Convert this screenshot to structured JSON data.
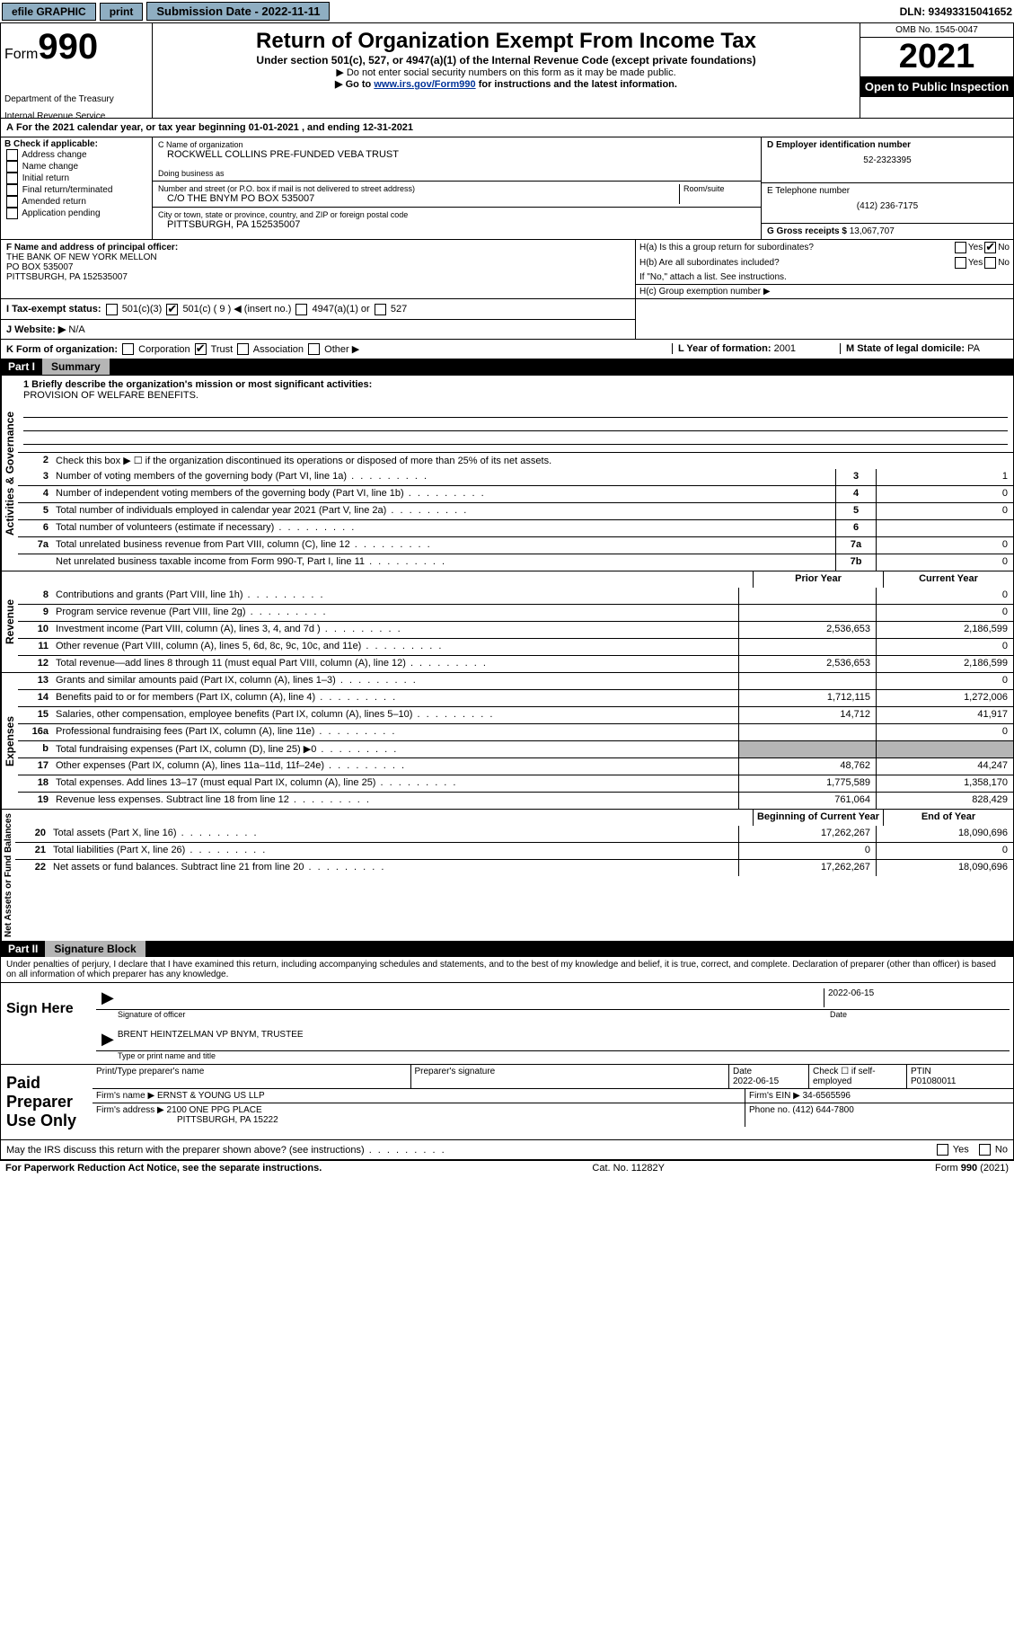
{
  "topbar": {
    "efile": "efile GRAPHIC",
    "print": "print",
    "sub_label": "Submission Date - 2022-11-11",
    "dln": "DLN: 93493315041652"
  },
  "header": {
    "form_label": "Form",
    "form_num": "990",
    "dept": "Department of the Treasury",
    "service": "Internal Revenue Service",
    "title": "Return of Organization Exempt From Income Tax",
    "subtitle": "Under section 501(c), 527, or 4947(a)(1) of the Internal Revenue Code (except private foundations)",
    "note1": "▶ Do not enter social security numbers on this form as it may be made public.",
    "note2_pre": "▶ Go to ",
    "note2_link": "www.irs.gov/Form990",
    "note2_post": " for instructions and the latest information.",
    "omb": "OMB No. 1545-0047",
    "year": "2021",
    "inspection": "Open to Public Inspection"
  },
  "line_a": "For the 2021 calendar year, or tax year beginning 01-01-2021    , and ending 12-31-2021",
  "box_b": {
    "label": "B Check if applicable:",
    "opts": [
      "Address change",
      "Name change",
      "Initial return",
      "Final return/terminated",
      "Amended return",
      "Application pending"
    ]
  },
  "box_c": {
    "name_label": "C Name of organization",
    "name": "ROCKWELL COLLINS PRE-FUNDED VEBA TRUST",
    "dba_label": "Doing business as",
    "street_label": "Number and street (or P.O. box if mail is not delivered to street address)",
    "room_label": "Room/suite",
    "street": "C/O THE BNYM PO BOX 535007",
    "city_label": "City or town, state or province, country, and ZIP or foreign postal code",
    "city": "PITTSBURGH, PA  152535007"
  },
  "box_d": {
    "label": "D Employer identification number",
    "value": "52-2323395"
  },
  "box_e": {
    "label": "E Telephone number",
    "value": "(412) 236-7175"
  },
  "box_g": {
    "label": "G Gross receipts $",
    "value": "13,067,707"
  },
  "box_f": {
    "label": "F Name and address of principal officer:",
    "line1": "THE BANK OF NEW YORK MELLON",
    "line2": "PO BOX 535007",
    "line3": "PITTSBURGH, PA  152535007"
  },
  "box_h": {
    "a": "H(a)  Is this a group return for subordinates?",
    "b": "H(b)  Are all subordinates included?",
    "b_note": "If \"No,\" attach a list. See instructions.",
    "c": "H(c)  Group exemption number ▶",
    "yes": "Yes",
    "no": "No"
  },
  "line_i": {
    "label": "I   Tax-exempt status:",
    "o1": "501(c)(3)",
    "o2": "501(c) ( 9 ) ◀ (insert no.)",
    "o3": "4947(a)(1) or",
    "o4": "527"
  },
  "line_j": {
    "label": "J   Website: ▶",
    "value": "N/A"
  },
  "line_k": {
    "label": "K Form of organization:",
    "o1": "Corporation",
    "o2": "Trust",
    "o3": "Association",
    "o4": "Other ▶"
  },
  "line_l": {
    "label": "L Year of formation:",
    "value": "2001"
  },
  "line_m": {
    "label": "M State of legal domicile:",
    "value": "PA"
  },
  "part1": {
    "label": "Part I",
    "title": "Summary"
  },
  "summary": {
    "sections": {
      "activities": "Activities & Governance",
      "revenue": "Revenue",
      "expenses": "Expenses",
      "net": "Net Assets or Fund Balances"
    },
    "l1_label": "1  Briefly describe the organization's mission or most significant activities:",
    "l1_text": "PROVISION OF WELFARE BENEFITS.",
    "l2": "Check this box ▶ ☐  if the organization discontinued its operations or disposed of more than 25% of its net assets.",
    "col_prior": "Prior Year",
    "col_current": "Current Year",
    "col_begin": "Beginning of Current Year",
    "col_end": "End of Year",
    "rows_top": [
      {
        "n": "3",
        "d": "Number of voting members of the governing body (Part VI, line 1a)",
        "b": "3",
        "v": "1"
      },
      {
        "n": "4",
        "d": "Number of independent voting members of the governing body (Part VI, line 1b)",
        "b": "4",
        "v": "0"
      },
      {
        "n": "5",
        "d": "Total number of individuals employed in calendar year 2021 (Part V, line 2a)",
        "b": "5",
        "v": "0"
      },
      {
        "n": "6",
        "d": "Total number of volunteers (estimate if necessary)",
        "b": "6",
        "v": ""
      },
      {
        "n": "7a",
        "d": "Total unrelated business revenue from Part VIII, column (C), line 12",
        "b": "7a",
        "v": "0"
      },
      {
        "n": "",
        "d": "Net unrelated business taxable income from Form 990-T, Part I, line 11",
        "b": "7b",
        "v": "0"
      }
    ],
    "rows_rev": [
      {
        "n": "8",
        "d": "Contributions and grants (Part VIII, line 1h)",
        "p": "",
        "c": "0"
      },
      {
        "n": "9",
        "d": "Program service revenue (Part VIII, line 2g)",
        "p": "",
        "c": "0"
      },
      {
        "n": "10",
        "d": "Investment income (Part VIII, column (A), lines 3, 4, and 7d )",
        "p": "2,536,653",
        "c": "2,186,599"
      },
      {
        "n": "11",
        "d": "Other revenue (Part VIII, column (A), lines 5, 6d, 8c, 9c, 10c, and 11e)",
        "p": "",
        "c": "0"
      },
      {
        "n": "12",
        "d": "Total revenue—add lines 8 through 11 (must equal Part VIII, column (A), line 12)",
        "p": "2,536,653",
        "c": "2,186,599"
      }
    ],
    "rows_exp": [
      {
        "n": "13",
        "d": "Grants and similar amounts paid (Part IX, column (A), lines 1–3)",
        "p": "",
        "c": "0"
      },
      {
        "n": "14",
        "d": "Benefits paid to or for members (Part IX, column (A), line 4)",
        "p": "1,712,115",
        "c": "1,272,006"
      },
      {
        "n": "15",
        "d": "Salaries, other compensation, employee benefits (Part IX, column (A), lines 5–10)",
        "p": "14,712",
        "c": "41,917"
      },
      {
        "n": "16a",
        "d": "Professional fundraising fees (Part IX, column (A), line 11e)",
        "p": "",
        "c": "0"
      },
      {
        "n": "b",
        "d": "Total fundraising expenses (Part IX, column (D), line 25) ▶0",
        "p": "grey",
        "c": "grey"
      },
      {
        "n": "17",
        "d": "Other expenses (Part IX, column (A), lines 11a–11d, 11f–24e)",
        "p": "48,762",
        "c": "44,247"
      },
      {
        "n": "18",
        "d": "Total expenses. Add lines 13–17 (must equal Part IX, column (A), line 25)",
        "p": "1,775,589",
        "c": "1,358,170"
      },
      {
        "n": "19",
        "d": "Revenue less expenses. Subtract line 18 from line 12",
        "p": "761,064",
        "c": "828,429"
      }
    ],
    "rows_net": [
      {
        "n": "20",
        "d": "Total assets (Part X, line 16)",
        "p": "17,262,267",
        "c": "18,090,696"
      },
      {
        "n": "21",
        "d": "Total liabilities (Part X, line 26)",
        "p": "0",
        "c": "0"
      },
      {
        "n": "22",
        "d": "Net assets or fund balances. Subtract line 21 from line 20",
        "p": "17,262,267",
        "c": "18,090,696"
      }
    ]
  },
  "part2": {
    "label": "Part II",
    "title": "Signature Block"
  },
  "sig": {
    "declaration": "Under penalties of perjury, I declare that I have examined this return, including accompanying schedules and statements, and to the best of my knowledge and belief, it is true, correct, and complete. Declaration of preparer (other than officer) is based on all information of which preparer has any knowledge.",
    "sign_here": "Sign Here",
    "sig_officer": "Signature of officer",
    "date": "Date",
    "date_val": "2022-06-15",
    "name_title": "BRENT HEINTZELMAN VP BNYM, TRUSTEE",
    "name_label": "Type or print name and title"
  },
  "paid": {
    "label": "Paid Preparer Use Only",
    "h1": "Print/Type preparer's name",
    "h2": "Preparer's signature",
    "h3": "Date",
    "h3v": "2022-06-15",
    "h4": "Check ☐ if self-employed",
    "h5": "PTIN",
    "h5v": "P01080011",
    "firm_name_l": "Firm's name    ▶",
    "firm_name": "ERNST & YOUNG US LLP",
    "firm_ein_l": "Firm's EIN ▶",
    "firm_ein": "34-6565596",
    "firm_addr_l": "Firm's address ▶",
    "firm_addr1": "2100 ONE PPG PLACE",
    "firm_addr2": "PITTSBURGH, PA  15222",
    "phone_l": "Phone no.",
    "phone": "(412) 644-7800"
  },
  "footer": {
    "discuss": "May the IRS discuss this return with the preparer shown above? (see instructions)",
    "paperwork": "For Paperwork Reduction Act Notice, see the separate instructions.",
    "cat": "Cat. No. 11282Y",
    "form": "Form 990 (2021)"
  }
}
